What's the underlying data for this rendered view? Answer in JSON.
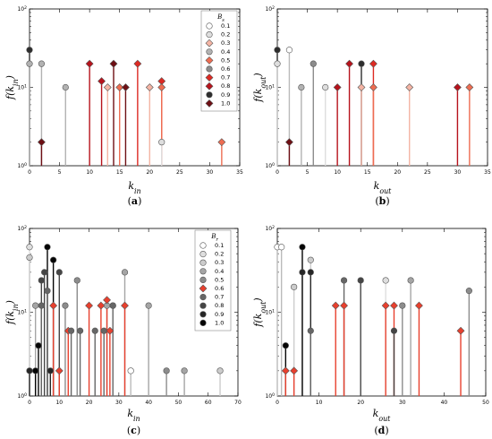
{
  "colors": {
    "0.1": "#ffffff",
    "0.2": "#dedede",
    "0.3": "#f4b4a4",
    "0.4": "#b2b2b2",
    "0.5": "#ee6d52",
    "0.6": "#8c8c8c",
    "0.7": "#dd2a23",
    "0.8": "#b7131c",
    "0.9": "#2d2d2d",
    "1.0": "#6e0f14"
  },
  "colors_cd": {
    "0.1": "#ffffff",
    "0.2": "#dedede",
    "0.3": "#cccccc",
    "0.4": "#a5a5a5",
    "0.5": "#8c8c8c",
    "0.6": "#e8402e",
    "0.7": "#666666",
    "0.8": "#454545",
    "0.9": "#262626",
    "1.0": "#050505"
  },
  "chart_data": [
    {
      "id": "a",
      "type": "scatter",
      "caption": "(a)",
      "xlabel": "k_in",
      "ylabel": "f(k_in)",
      "xlim": [
        0,
        35
      ],
      "ylim_log10": [
        0,
        2
      ],
      "xticks": [
        "0",
        "5",
        "10",
        "15",
        "20",
        "25",
        "30",
        "35"
      ],
      "yticks": [
        "10^0",
        "10^1",
        "10^2"
      ],
      "legend": {
        "title": "B_s",
        "position": "top-right",
        "entries": [
          "0.1",
          "0.2",
          "0.3",
          "0.4",
          "0.5",
          "0.6",
          "0.7",
          "0.8",
          "0.9",
          "1.0"
        ],
        "marker": "diamond-from-0.3"
      },
      "palette": "colors",
      "points": [
        {
          "x": 0,
          "y": 30,
          "s": "0.9"
        },
        {
          "x": 0,
          "y": 20,
          "s": "0.4"
        },
        {
          "x": 2,
          "y": 20,
          "s": "0.4"
        },
        {
          "x": 2,
          "y": 2,
          "s": "1.0"
        },
        {
          "x": 6,
          "y": 10,
          "s": "0.4"
        },
        {
          "x": 10,
          "y": 20,
          "s": "0.8"
        },
        {
          "x": 12,
          "y": 12,
          "s": "0.8"
        },
        {
          "x": 13,
          "y": 10,
          "s": "0.3"
        },
        {
          "x": 14,
          "y": 20,
          "s": "1.0"
        },
        {
          "x": 15,
          "y": 10,
          "s": "0.5"
        },
        {
          "x": 16,
          "y": 10,
          "s": "1.0"
        },
        {
          "x": 18,
          "y": 20,
          "s": "0.7"
        },
        {
          "x": 20,
          "y": 10,
          "s": "0.3"
        },
        {
          "x": 22,
          "y": 12,
          "s": "0.7"
        },
        {
          "x": 22,
          "y": 10,
          "s": "0.5"
        },
        {
          "x": 22,
          "y": 2,
          "s": "0.2"
        },
        {
          "x": 32,
          "y": 2,
          "s": "0.5"
        }
      ]
    },
    {
      "id": "b",
      "type": "scatter",
      "caption": "(b)",
      "xlabel": "k_out",
      "ylabel": "f(k_out)",
      "xlim": [
        0,
        35
      ],
      "ylim_log10": [
        0,
        2
      ],
      "xticks": [
        "0",
        "5",
        "10",
        "15",
        "20",
        "25",
        "30",
        "35"
      ],
      "yticks": [
        "10^0",
        "10^1",
        "10^2"
      ],
      "palette": "colors",
      "points": [
        {
          "x": 0,
          "y": 30,
          "s": "0.9"
        },
        {
          "x": 0,
          "y": 20,
          "s": "0.2"
        },
        {
          "x": 2,
          "y": 30,
          "s": "0.1"
        },
        {
          "x": 2,
          "y": 2,
          "s": "1.0"
        },
        {
          "x": 4,
          "y": 10,
          "s": "0.4"
        },
        {
          "x": 6,
          "y": 20,
          "s": "0.6"
        },
        {
          "x": 8,
          "y": 10,
          "s": "0.2"
        },
        {
          "x": 10,
          "y": 10,
          "s": "0.8"
        },
        {
          "x": 12,
          "y": 20,
          "s": "0.8"
        },
        {
          "x": 14,
          "y": 20,
          "s": "0.9"
        },
        {
          "x": 14,
          "y": 10,
          "s": "0.3"
        },
        {
          "x": 16,
          "y": 20,
          "s": "0.7"
        },
        {
          "x": 16,
          "y": 10,
          "s": "0.5"
        },
        {
          "x": 22,
          "y": 10,
          "s": "0.3"
        },
        {
          "x": 30,
          "y": 10,
          "s": "0.8"
        },
        {
          "x": 32,
          "y": 10,
          "s": "0.5"
        }
      ]
    },
    {
      "id": "c",
      "type": "scatter",
      "caption": "(c)",
      "xlabel": "k_in",
      "ylabel": "f(k_in)",
      "xlim": [
        0,
        70
      ],
      "ylim_log10": [
        0,
        2
      ],
      "xticks": [
        "0",
        "10",
        "20",
        "30",
        "40",
        "50",
        "60",
        "70"
      ],
      "yticks": [
        "10^0",
        "10^1",
        "10^2"
      ],
      "legend": {
        "title": "B_r",
        "position": "top-right",
        "entries": [
          "0.1",
          "0.2",
          "0.3",
          "0.4",
          "0.5",
          "0.6",
          "0.7",
          "0.8",
          "0.9",
          "1.0"
        ],
        "marker": "diamond-only-0.6"
      },
      "palette": "colors_cd",
      "points": [
        {
          "x": 0,
          "y": 60,
          "s": "0.2"
        },
        {
          "x": 0,
          "y": 45,
          "s": "0.3"
        },
        {
          "x": 0,
          "y": 2,
          "s": "0.9"
        },
        {
          "x": 2,
          "y": 12,
          "s": "0.4"
        },
        {
          "x": 2,
          "y": 2,
          "s": "1.0"
        },
        {
          "x": 3,
          "y": 4,
          "s": "1.0"
        },
        {
          "x": 4,
          "y": 24,
          "s": "0.8"
        },
        {
          "x": 4,
          "y": 12,
          "s": "0.7"
        },
        {
          "x": 5,
          "y": 30,
          "s": "0.8"
        },
        {
          "x": 6,
          "y": 60,
          "s": "1.0"
        },
        {
          "x": 6,
          "y": 18,
          "s": "0.7"
        },
        {
          "x": 7,
          "y": 2,
          "s": "0.9"
        },
        {
          "x": 8,
          "y": 42,
          "s": "1.0"
        },
        {
          "x": 8,
          "y": 12,
          "s": "0.6"
        },
        {
          "x": 10,
          "y": 30,
          "s": "0.8"
        },
        {
          "x": 10,
          "y": 2,
          "s": "0.6"
        },
        {
          "x": 12,
          "y": 12,
          "s": "0.5"
        },
        {
          "x": 13,
          "y": 6,
          "s": "0.6"
        },
        {
          "x": 14,
          "y": 6,
          "s": "0.7"
        },
        {
          "x": 16,
          "y": 24,
          "s": "0.5"
        },
        {
          "x": 17,
          "y": 6,
          "s": "0.7"
        },
        {
          "x": 20,
          "y": 12,
          "s": "0.6"
        },
        {
          "x": 22,
          "y": 6,
          "s": "0.7"
        },
        {
          "x": 24,
          "y": 12,
          "s": "0.6"
        },
        {
          "x": 25,
          "y": 6,
          "s": "0.7"
        },
        {
          "x": 26,
          "y": 12,
          "s": "0.4"
        },
        {
          "x": 26,
          "y": 14,
          "s": "0.6"
        },
        {
          "x": 27,
          "y": 6,
          "s": "0.6"
        },
        {
          "x": 28,
          "y": 12,
          "s": "0.2"
        },
        {
          "x": 28,
          "y": 12,
          "s": "0.7"
        },
        {
          "x": 32,
          "y": 30,
          "s": "0.4"
        },
        {
          "x": 32,
          "y": 12,
          "s": "0.6"
        },
        {
          "x": 34,
          "y": 2,
          "s": "0.1"
        },
        {
          "x": 40,
          "y": 12,
          "s": "0.4"
        },
        {
          "x": 46,
          "y": 2,
          "s": "0.5"
        },
        {
          "x": 52,
          "y": 2,
          "s": "0.4"
        },
        {
          "x": 64,
          "y": 2,
          "s": "0.3"
        }
      ]
    },
    {
      "id": "d",
      "type": "scatter",
      "caption": "(d)",
      "xlabel": "k_out",
      "ylabel": "f(k_out)",
      "xlim": [
        0,
        50
      ],
      "ylim_log10": [
        0,
        2
      ],
      "xticks": [
        "0",
        "10",
        "20",
        "30",
        "40",
        "50"
      ],
      "yticks": [
        "10^0",
        "10^1",
        "10^2"
      ],
      "palette": "colors_cd",
      "points": [
        {
          "x": 0,
          "y": 60,
          "s": "0.1"
        },
        {
          "x": 1,
          "y": 60,
          "s": "0.1"
        },
        {
          "x": 2,
          "y": 4,
          "s": "1.0"
        },
        {
          "x": 2,
          "y": 2,
          "s": "0.6"
        },
        {
          "x": 4,
          "y": 20,
          "s": "0.3"
        },
        {
          "x": 4,
          "y": 2,
          "s": "0.6"
        },
        {
          "x": 6,
          "y": 60,
          "s": "1.0"
        },
        {
          "x": 6,
          "y": 30,
          "s": "0.9"
        },
        {
          "x": 8,
          "y": 42,
          "s": "0.3"
        },
        {
          "x": 8,
          "y": 30,
          "s": "0.9"
        },
        {
          "x": 8,
          "y": 6,
          "s": "0.7"
        },
        {
          "x": 14,
          "y": 12,
          "s": "0.6"
        },
        {
          "x": 16,
          "y": 24,
          "s": "0.7"
        },
        {
          "x": 16,
          "y": 12,
          "s": "0.6"
        },
        {
          "x": 20,
          "y": 24,
          "s": "0.8"
        },
        {
          "x": 26,
          "y": 24,
          "s": "0.2"
        },
        {
          "x": 26,
          "y": 12,
          "s": "0.6"
        },
        {
          "x": 28,
          "y": 12,
          "s": "0.6"
        },
        {
          "x": 28,
          "y": 6,
          "s": "0.8"
        },
        {
          "x": 30,
          "y": 12,
          "s": "0.5"
        },
        {
          "x": 32,
          "y": 24,
          "s": "0.4"
        },
        {
          "x": 34,
          "y": 12,
          "s": "0.6"
        },
        {
          "x": 44,
          "y": 6,
          "s": "0.6"
        },
        {
          "x": 46,
          "y": 18,
          "s": "0.5"
        }
      ]
    }
  ]
}
